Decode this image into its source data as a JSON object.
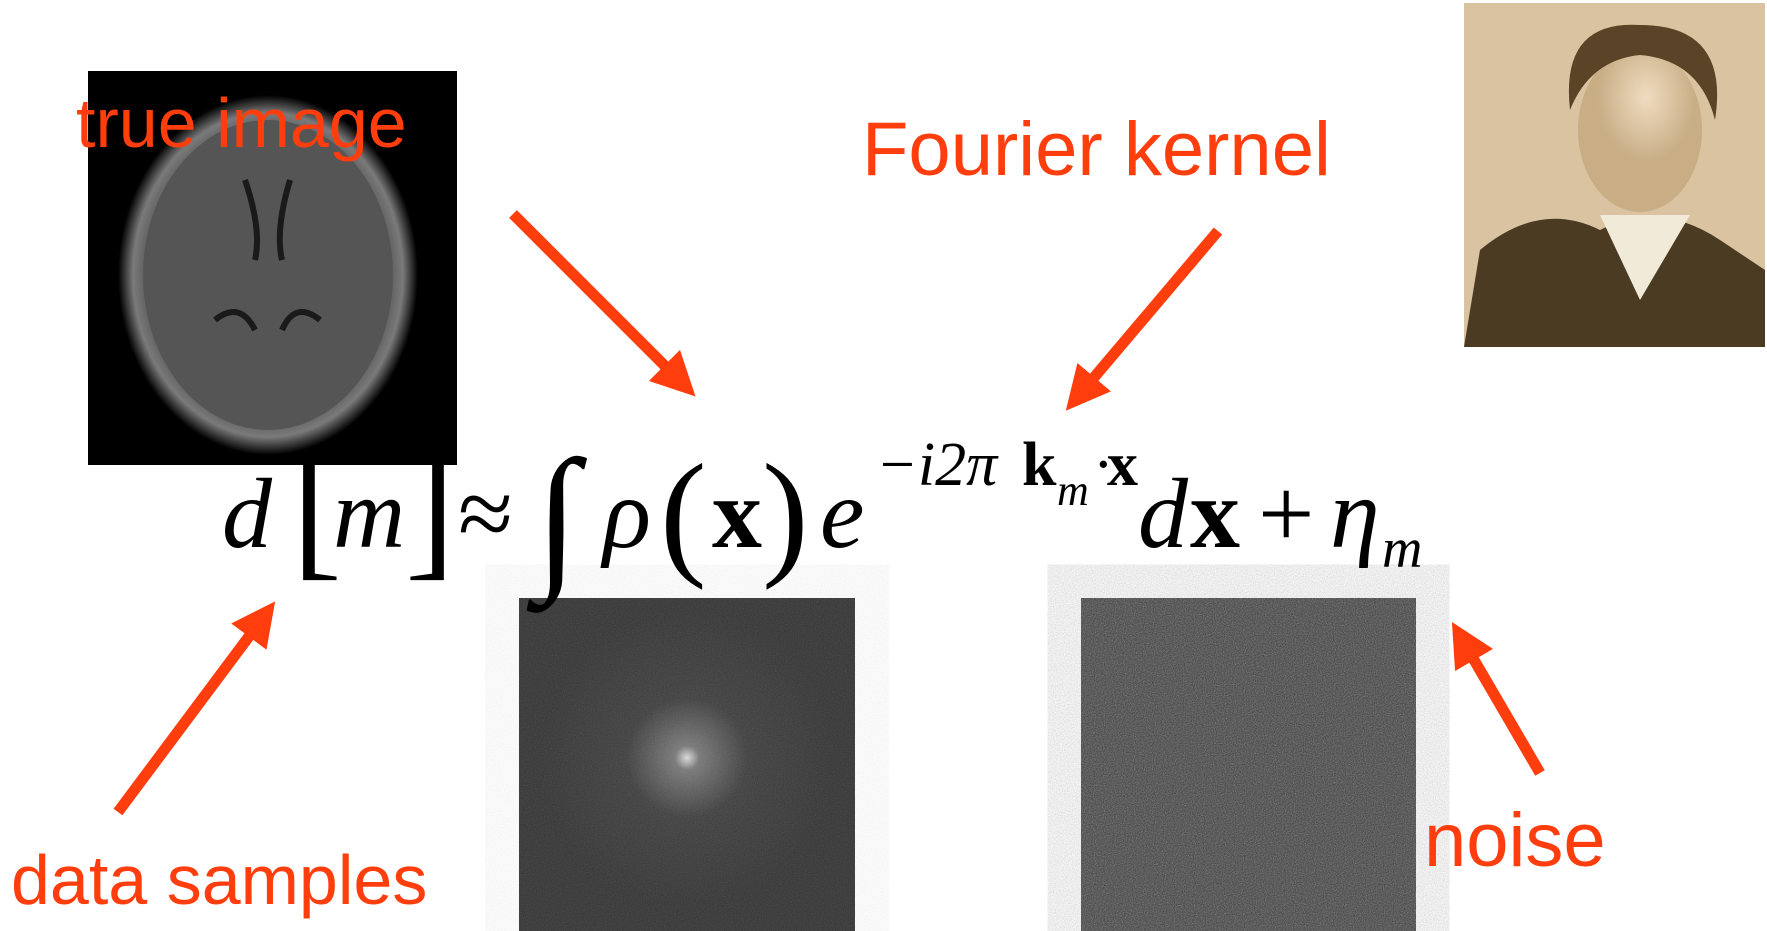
{
  "labels": {
    "true_image": "true image",
    "fourier_kernel": "Fourier kernel",
    "data_samples": "data samples",
    "noise": "noise"
  },
  "equation": [
    "d",
    "[",
    "m",
    "]",
    "≈",
    "∫",
    "ρ",
    "(",
    "x",
    ")",
    "e",
    "−i2π",
    "k",
    "m",
    "·",
    "x",
    "d",
    "x",
    "+",
    "η",
    "m"
  ]
}
